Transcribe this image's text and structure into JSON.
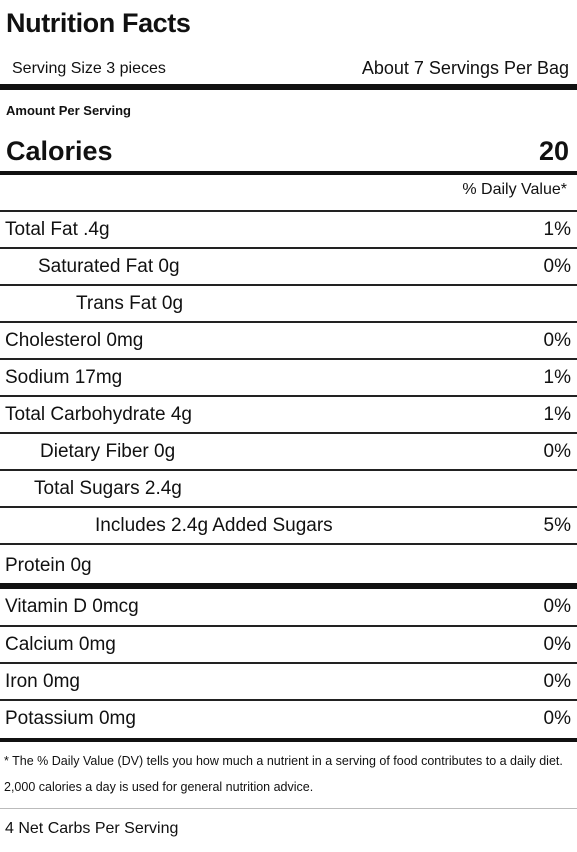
{
  "title": "Nutrition Facts",
  "serving_size": "Serving Size 3 pieces",
  "servings_per": "About 7 Servings Per Bag",
  "amount_per_serving": "Amount Per Serving",
  "calories": {
    "label": "Calories",
    "value": "20"
  },
  "dv_header": "% Daily Value*",
  "nutrients": [
    {
      "label": "Total Fat .4g",
      "dv": "1%"
    },
    {
      "label": "Saturated Fat 0g",
      "dv": "0%"
    },
    {
      "label": "Trans Fat 0g",
      "dv": ""
    },
    {
      "label": "Cholesterol 0mg",
      "dv": "0%"
    },
    {
      "label": "Sodium 17mg",
      "dv": "1%"
    },
    {
      "label": "Total Carbohydrate 4g",
      "dv": "1%"
    },
    {
      "label": "Dietary Fiber 0g",
      "dv": "0%"
    },
    {
      "label": "Total Sugars 2.4g",
      "dv": ""
    },
    {
      "label": "Includes 2.4g Added Sugars",
      "dv": "5%"
    },
    {
      "label": "Protein 0g",
      "dv": ""
    }
  ],
  "vitamins": [
    {
      "label": "Vitamin D 0mcg",
      "dv": "0%"
    },
    {
      "label": "Calcium 0mg",
      "dv": "0%"
    },
    {
      "label": "Iron 0mg",
      "dv": "0%"
    },
    {
      "label": "Potassium 0mg",
      "dv": "0%"
    }
  ],
  "footnote": "* The % Daily Value (DV) tells you how much a nutrient in a serving of food contributes to a daily diet. 2,000 calories a day is used for general nutrition advice.",
  "net_carbs": "4 Net Carbs Per Serving"
}
